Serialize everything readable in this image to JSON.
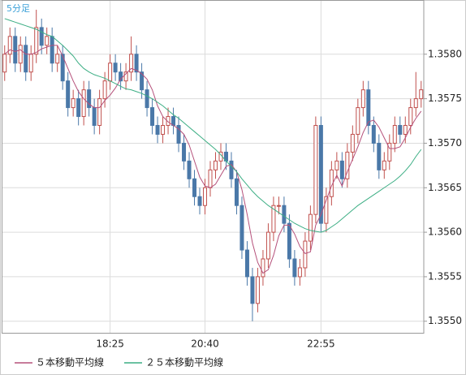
{
  "chart_data": {
    "type": "candlestick",
    "timeframe_label": "5分足",
    "categories": [
      null,
      null,
      null,
      null,
      null,
      null,
      null,
      null,
      null,
      null,
      null,
      null,
      null,
      null,
      null,
      null,
      null,
      null,
      null,
      null,
      "18:25",
      null,
      null,
      null,
      null,
      null,
      null,
      null,
      null,
      null,
      null,
      null,
      null,
      null,
      null,
      null,
      null,
      null,
      "20:40",
      null,
      null,
      null,
      null,
      null,
      null,
      null,
      null,
      null,
      null,
      null,
      null,
      null,
      null,
      null,
      null,
      null,
      null,
      null,
      null,
      null,
      "22:55",
      null,
      null,
      null,
      null,
      null,
      null,
      null,
      null,
      null,
      null,
      null,
      null,
      null,
      null,
      null,
      null,
      null,
      null,
      null
    ],
    "open": [
      1.3578,
      1.358,
      1.3582,
      1.3579,
      1.3581,
      1.3578,
      1.358,
      1.3583,
      1.3581,
      1.3582,
      1.3579,
      1.358,
      1.3577,
      1.3574,
      1.3575,
      1.3573,
      1.3576,
      1.3574,
      1.3572,
      1.3575,
      1.3577,
      1.3579,
      1.3578,
      1.3577,
      1.3578,
      1.358,
      1.3578,
      1.3576,
      1.3574,
      1.3572,
      1.3571,
      1.3572,
      1.3573,
      1.3572,
      1.357,
      1.3568,
      1.3566,
      1.3564,
      1.3563,
      1.3565,
      1.3567,
      1.3568,
      1.3569,
      1.3568,
      1.3566,
      1.3563,
      1.3558,
      1.3555,
      1.3552,
      1.3555,
      1.3557,
      1.356,
      1.3563,
      1.3563,
      1.3561,
      1.3557,
      1.3555,
      1.3556,
      1.3559,
      1.3562,
      1.3572,
      1.3561,
      1.3564,
      1.3567,
      1.3568,
      1.3566,
      1.3569,
      1.3571,
      1.3574,
      1.3576,
      1.3572,
      1.357,
      1.3567,
      1.3568,
      1.357,
      1.3572,
      1.3571,
      1.3572,
      1.3574,
      1.3575
    ],
    "high": [
      1.3581,
      1.3583,
      1.3583,
      1.3582,
      1.3582,
      1.3581,
      1.3585,
      1.3584,
      1.3583,
      1.3583,
      1.3581,
      1.3581,
      1.3578,
      1.3576,
      1.3576,
      1.3577,
      1.3577,
      1.3575,
      1.3576,
      1.3578,
      1.358,
      1.358,
      1.3579,
      1.3579,
      1.3582,
      1.3581,
      1.3579,
      1.3577,
      1.3575,
      1.3573,
      1.3573,
      1.3574,
      1.3574,
      1.3573,
      1.3571,
      1.3569,
      1.3567,
      1.3565,
      1.3566,
      1.3568,
      1.3569,
      1.357,
      1.357,
      1.3569,
      1.3567,
      1.3564,
      1.3559,
      1.3556,
      1.3556,
      1.3558,
      1.3561,
      1.3564,
      1.3564,
      1.3564,
      1.3562,
      1.3558,
      1.3557,
      1.356,
      1.3563,
      1.3573,
      1.3573,
      1.3565,
      1.3568,
      1.3569,
      1.3569,
      1.357,
      1.3572,
      1.3575,
      1.3577,
      1.3577,
      1.3573,
      1.3571,
      1.3569,
      1.3571,
      1.3573,
      1.3573,
      1.3573,
      1.3575,
      1.3578,
      1.3577
    ],
    "low": [
      1.3577,
      1.3579,
      1.3578,
      1.3578,
      1.3577,
      1.3577,
      1.3579,
      1.358,
      1.358,
      1.3578,
      1.3578,
      1.3576,
      1.3573,
      1.3573,
      1.3572,
      1.3572,
      1.3573,
      1.3571,
      1.3571,
      1.3574,
      1.3576,
      1.3577,
      1.3576,
      1.3576,
      1.3577,
      1.3577,
      1.3575,
      1.3573,
      1.3571,
      1.357,
      1.357,
      1.3571,
      1.3571,
      1.3569,
      1.3567,
      1.3565,
      1.3563,
      1.3562,
      1.3562,
      1.3564,
      1.3566,
      1.3567,
      1.3567,
      1.3565,
      1.3562,
      1.3557,
      1.3554,
      1.355,
      1.3551,
      1.3554,
      1.3556,
      1.3559,
      1.3562,
      1.356,
      1.3556,
      1.3554,
      1.3554,
      1.3555,
      1.3558,
      1.3561,
      1.356,
      1.356,
      1.3563,
      1.3566,
      1.3565,
      1.3565,
      1.3568,
      1.357,
      1.3573,
      1.3571,
      1.3569,
      1.3566,
      1.3566,
      1.3567,
      1.3569,
      1.357,
      1.357,
      1.3571,
      1.3573,
      1.3574
    ],
    "close": [
      1.358,
      1.3582,
      1.3579,
      1.3581,
      1.3578,
      1.358,
      1.3583,
      1.3581,
      1.3582,
      1.3579,
      1.358,
      1.3577,
      1.3574,
      1.3575,
      1.3573,
      1.3576,
      1.3574,
      1.3572,
      1.3575,
      1.3577,
      1.3579,
      1.3578,
      1.3577,
      1.3578,
      1.358,
      1.3578,
      1.3576,
      1.3574,
      1.3572,
      1.3571,
      1.3572,
      1.3573,
      1.3572,
      1.357,
      1.3568,
      1.3566,
      1.3564,
      1.3563,
      1.3565,
      1.3567,
      1.3568,
      1.3569,
      1.3568,
      1.3566,
      1.3563,
      1.3558,
      1.3555,
      1.3552,
      1.3555,
      1.3557,
      1.356,
      1.3563,
      1.3563,
      1.3561,
      1.3557,
      1.3555,
      1.3556,
      1.3559,
      1.3562,
      1.3572,
      1.3561,
      1.3564,
      1.3567,
      1.3568,
      1.3566,
      1.3569,
      1.3571,
      1.3574,
      1.3576,
      1.3572,
      1.357,
      1.3567,
      1.3568,
      1.357,
      1.3572,
      1.3571,
      1.3572,
      1.3574,
      1.3575,
      1.3576
    ],
    "up_color": "#c0504d",
    "down_color": "#4a78a8",
    "series": [
      {
        "name": "５本移動平均線",
        "color": "#b5507a",
        "values": [
          1.358,
          1.35805,
          1.35803,
          1.35805,
          1.358,
          1.358,
          1.35802,
          1.35806,
          1.35808,
          1.3581,
          1.3581,
          1.35798,
          1.35784,
          1.3577,
          1.35758,
          1.3575,
          1.35744,
          1.3574,
          1.3574,
          1.35748,
          1.35754,
          1.35762,
          1.35772,
          1.35778,
          1.35784,
          1.35782,
          1.35778,
          1.35772,
          1.3576,
          1.35742,
          1.3573,
          1.35724,
          1.3572,
          1.35716,
          1.3571,
          1.35698,
          1.3568,
          1.35662,
          1.35652,
          1.3565,
          1.35654,
          1.35664,
          1.35674,
          1.35676,
          1.35668,
          1.35648,
          1.3562,
          1.35588,
          1.35566,
          1.35554,
          1.35558,
          1.35574,
          1.35596,
          1.35608,
          1.35608,
          1.35598,
          1.35584,
          1.35576,
          1.35578,
          1.35608,
          1.3562,
          1.35636,
          1.35652,
          1.35664,
          1.35652,
          1.35668,
          1.35682,
          1.35696,
          1.35712,
          1.35724,
          1.35726,
          1.35718,
          1.35706,
          1.35694,
          1.35694,
          1.35696,
          1.35706,
          1.35718,
          1.35728,
          1.35736
        ]
      },
      {
        "name": "２５本移動平均線",
        "color": "#3cae84",
        "values": [
          1.3584,
          1.35838,
          1.35836,
          1.35834,
          1.35832,
          1.3583,
          1.35828,
          1.35825,
          1.35822,
          1.3582,
          1.35815,
          1.3581,
          1.35804,
          1.35798,
          1.3579,
          1.35784,
          1.3578,
          1.35777,
          1.35775,
          1.35773,
          1.3577,
          1.35767,
          1.35764,
          1.35761,
          1.3576,
          1.35758,
          1.35756,
          1.35753,
          1.3575,
          1.35746,
          1.35742,
          1.35737,
          1.35732,
          1.35728,
          1.35723,
          1.35718,
          1.35713,
          1.35708,
          1.35703,
          1.35698,
          1.35693,
          1.35687,
          1.3568,
          1.35674,
          1.35668,
          1.3566,
          1.35653,
          1.35646,
          1.3564,
          1.35635,
          1.3563,
          1.35626,
          1.35622,
          1.35618,
          1.35614,
          1.3561,
          1.35607,
          1.35604,
          1.35602,
          1.35601,
          1.356,
          1.35602,
          1.35606,
          1.3561,
          1.35615,
          1.3562,
          1.35625,
          1.3563,
          1.35634,
          1.35638,
          1.35642,
          1.35646,
          1.3565,
          1.35654,
          1.35658,
          1.35663,
          1.35669,
          1.35676,
          1.35685,
          1.35693
        ]
      }
    ],
    "ylim": [
      1.35487,
      1.3586
    ],
    "yticks": [
      {
        "value": 1.355,
        "label": "1.3550"
      },
      {
        "value": 1.3555,
        "label": "1.3555"
      },
      {
        "value": 1.356,
        "label": "1.3560"
      },
      {
        "value": 1.3565,
        "label": "1.3565"
      },
      {
        "value": 1.357,
        "label": "1.3570"
      },
      {
        "value": 1.3575,
        "label": "1.3575"
      },
      {
        "value": 1.358,
        "label": "1.3580"
      }
    ],
    "grid": true
  }
}
